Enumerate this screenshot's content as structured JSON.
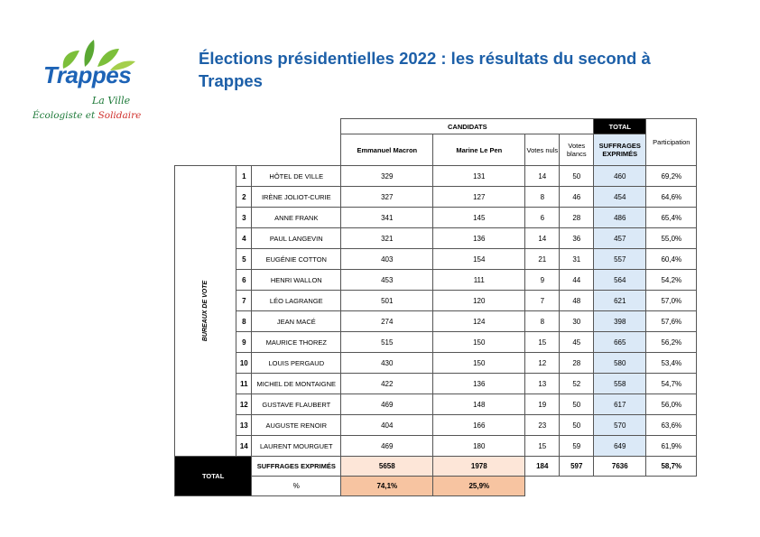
{
  "logo": {
    "name": "Trappes",
    "line1": "La Ville",
    "line2_a": "Écologiste",
    "line2_b": " et ",
    "line2_c": "Solidaire"
  },
  "title": "Élections présidentielles 2022 : les résultats du second à Trappes",
  "table": {
    "candidats_label": "CANDIDATS",
    "total_label": "TOTAL",
    "col_macron": "Emmanuel Macron",
    "col_lepen": "Marine Le Pen",
    "col_nuls": "Votes nuls",
    "col_blancs": "Votes blancs",
    "col_suffrages": "SUFFRAGES EXPRIMÉS",
    "col_participation": "Participation",
    "bureaux_label": "BUREAUX DE VOTE",
    "rows": [
      {
        "num": "1",
        "name": "HÔTEL DE VILLE",
        "macron": "329",
        "lepen": "131",
        "nuls": "14",
        "blancs": "50",
        "suffrages": "460",
        "participation": "69,2%"
      },
      {
        "num": "2",
        "name": "IRÈNE JOLIOT-CURIE",
        "macron": "327",
        "lepen": "127",
        "nuls": "8",
        "blancs": "46",
        "suffrages": "454",
        "participation": "64,6%"
      },
      {
        "num": "3",
        "name": "ANNE FRANK",
        "macron": "341",
        "lepen": "145",
        "nuls": "6",
        "blancs": "28",
        "suffrages": "486",
        "participation": "65,4%"
      },
      {
        "num": "4",
        "name": "PAUL LANGEVIN",
        "macron": "321",
        "lepen": "136",
        "nuls": "14",
        "blancs": "36",
        "suffrages": "457",
        "participation": "55,0%"
      },
      {
        "num": "5",
        "name": "EUGÉNIE COTTON",
        "macron": "403",
        "lepen": "154",
        "nuls": "21",
        "blancs": "31",
        "suffrages": "557",
        "participation": "60,4%"
      },
      {
        "num": "6",
        "name": "HENRI WALLON",
        "macron": "453",
        "lepen": "111",
        "nuls": "9",
        "blancs": "44",
        "suffrages": "564",
        "participation": "54,2%"
      },
      {
        "num": "7",
        "name": "LÉO LAGRANGE",
        "macron": "501",
        "lepen": "120",
        "nuls": "7",
        "blancs": "48",
        "suffrages": "621",
        "participation": "57,0%"
      },
      {
        "num": "8",
        "name": "JEAN MACÉ",
        "macron": "274",
        "lepen": "124",
        "nuls": "8",
        "blancs": "30",
        "suffrages": "398",
        "participation": "57,6%"
      },
      {
        "num": "9",
        "name": "MAURICE THOREZ",
        "macron": "515",
        "lepen": "150",
        "nuls": "15",
        "blancs": "45",
        "suffrages": "665",
        "participation": "56,2%"
      },
      {
        "num": "10",
        "name": "LOUIS PERGAUD",
        "macron": "430",
        "lepen": "150",
        "nuls": "12",
        "blancs": "28",
        "suffrages": "580",
        "participation": "53,4%"
      },
      {
        "num": "11",
        "name": "MICHEL DE MONTAIGNE",
        "macron": "422",
        "lepen": "136",
        "nuls": "13",
        "blancs": "52",
        "suffrages": "558",
        "participation": "54,7%"
      },
      {
        "num": "12",
        "name": "GUSTAVE FLAUBERT",
        "macron": "469",
        "lepen": "148",
        "nuls": "19",
        "blancs": "50",
        "suffrages": "617",
        "participation": "56,0%"
      },
      {
        "num": "13",
        "name": "AUGUSTE RENOIR",
        "macron": "404",
        "lepen": "166",
        "nuls": "23",
        "blancs": "50",
        "suffrages": "570",
        "participation": "63,6%"
      },
      {
        "num": "14",
        "name": "LAURENT MOURGUET",
        "macron": "469",
        "lepen": "180",
        "nuls": "15",
        "blancs": "59",
        "suffrages": "649",
        "participation": "61,9%"
      }
    ],
    "total": {
      "label": "TOTAL",
      "suffrages_label": "SUFFRAGES EXPRIMÉS",
      "macron": "5658",
      "lepen": "1978",
      "nuls": "184",
      "blancs": "597",
      "suffrages": "7636",
      "participation": "58,7%",
      "pct_label": "%",
      "macron_pct": "74,1%",
      "lepen_pct": "25,9%"
    }
  }
}
